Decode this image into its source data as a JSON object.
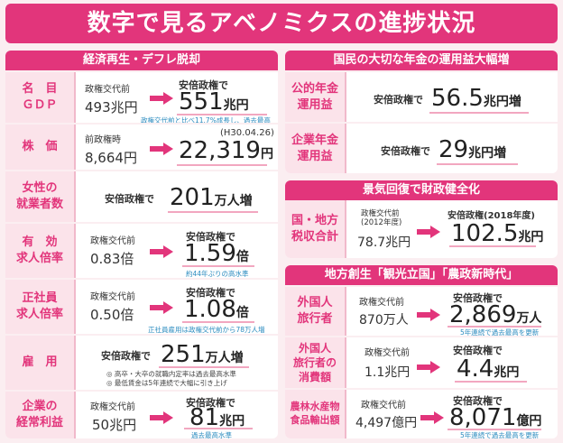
{
  "title": "数字で見るアベノミクスの進捗状況",
  "left": {
    "header": "経済再生・デフレ脱却",
    "rows": [
      {
        "label": "名　目\nＧＤＰ",
        "pre_label": "政権交代前",
        "pre_value": "493兆円",
        "post_label": "安倍政権で",
        "value": "551",
        "unit": "兆円",
        "note": "政権交代前と比べ11.7%成長し、過去最高"
      },
      {
        "label": "株　価",
        "pre_label": "前政権時",
        "pre_value": "8,664円",
        "post_label": "(H30.04.26)",
        "value": "22,319",
        "unit": "円",
        "note": ""
      },
      {
        "label": "女性の\n就業者数",
        "post_label": "安倍政権で",
        "value": "201",
        "unit": "万人増"
      },
      {
        "label": "有　効\n求人倍率",
        "pre_label": "政権交代前",
        "pre_value": "0.83倍",
        "post_label": "安倍政権で",
        "value": "1.59",
        "unit": "倍",
        "note": "約44年ぶりの高水準"
      },
      {
        "label": "正社員\n求人倍率",
        "pre_label": "政権交代前",
        "pre_value": "0.50倍",
        "post_label": "安倍政権で",
        "value": "1.08",
        "unit": "倍",
        "note": "正社員雇用は政権交代前から78万人増"
      },
      {
        "label": "雇　用",
        "post_label": "安倍政権で",
        "value": "251",
        "unit": "万人増",
        "bullets": "◎ 高卒・大卒の就職内定率は過去最高水準\n◎ 最低賃金は5年連続で大幅に引き上げ"
      },
      {
        "label": "企業の\n経常利益",
        "pre_label": "政権交代前",
        "pre_value": "50兆円",
        "post_label": "安倍政権で",
        "value": "81",
        "unit": "兆円",
        "note": "過去最高水準"
      }
    ]
  },
  "pension": {
    "header": "国民の大切な年金の運用益大幅増",
    "rows": [
      {
        "label": "公的年金\n運用益",
        "post_label": "安倍政権で",
        "value": "56.5",
        "unit": "兆円増"
      },
      {
        "label": "企業年金\n運用益",
        "post_label": "安倍政権で",
        "value": "29",
        "unit": "兆円増"
      }
    ]
  },
  "tax": {
    "header": "景気回復で財政健全化",
    "label": "国・地方\n税収合計",
    "pre_label": "政権交代前\n(2012年度)",
    "pre_value": "78.7兆円",
    "post_label": "安倍政権(2018年度)",
    "value": "102.5",
    "unit": "兆円"
  },
  "regional": {
    "header": "地方創生「観光立国」「農政新時代」",
    "rows": [
      {
        "label": "外国人\n旅行者",
        "pre_label": "政権交代前",
        "pre_value": "870万人",
        "post_label": "安倍政権で",
        "value": "2,869",
        "unit": "万人",
        "note": "5年連続で過去最高を更新"
      },
      {
        "label": "外国人\n旅行者の\n消費額",
        "pre_label": "政権交代前",
        "pre_value": "1.1兆円",
        "post_label": "安倍政権で",
        "value": "4.4",
        "unit": "兆円",
        "note": ""
      },
      {
        "label": "農林水産物\n食品輸出額",
        "pre_label": "政権交代前",
        "pre_value": "4,497億円",
        "post_label": "安倍政権で",
        "value": "8,071",
        "unit": "億円",
        "note": "5年連続で過去最高を更新"
      }
    ]
  },
  "colors": {
    "accent": "#e2357b",
    "label_bg": "#fbe3ea",
    "note": "#2a8bbf"
  }
}
